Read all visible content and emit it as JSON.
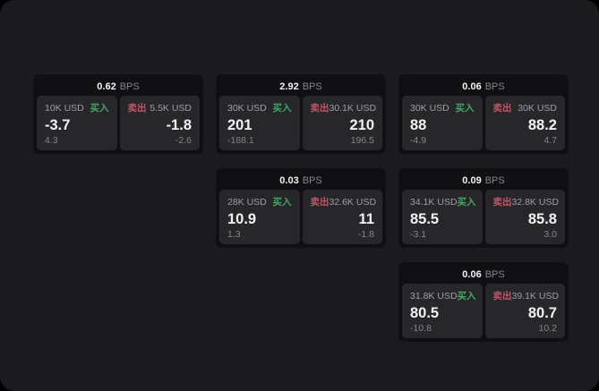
{
  "labels": {
    "bps": "BPS",
    "buy": "买入",
    "sell": "卖出"
  },
  "colors": {
    "background": "#1b1b1d",
    "card": "#101012",
    "panel": "#27272a",
    "buy": "#42a567",
    "sell": "#c05567",
    "text_primary": "#f2f2f2",
    "text_secondary": "#9e9ea3",
    "text_muted": "#85858a"
  },
  "cards": [
    {
      "row": 1,
      "col": 1,
      "bps": "0.62",
      "buy": {
        "amount": "10K USD",
        "price": "-3.7",
        "delta": "4.3"
      },
      "sell": {
        "amount": "5.5K USD",
        "price": "-1.8",
        "delta": "-2.6"
      }
    },
    {
      "row": 1,
      "col": 2,
      "bps": "2.92",
      "buy": {
        "amount": "30K USD",
        "price": "201",
        "delta": "-188.1"
      },
      "sell": {
        "amount": "30.1K USD",
        "price": "210",
        "delta": "196.5"
      }
    },
    {
      "row": 1,
      "col": 3,
      "bps": "0.06",
      "buy": {
        "amount": "30K USD",
        "price": "88",
        "delta": "-4.9"
      },
      "sell": {
        "amount": "30K USD",
        "price": "88.2",
        "delta": "4.7"
      }
    },
    {
      "row": 2,
      "col": 2,
      "bps": "0.03",
      "buy": {
        "amount": "28K USD",
        "price": "10.9",
        "delta": "1.3"
      },
      "sell": {
        "amount": "32.6K USD",
        "price": "11",
        "delta": "-1.8"
      }
    },
    {
      "row": 2,
      "col": 3,
      "bps": "0.09",
      "buy": {
        "amount": "34.1K USD",
        "price": "85.5",
        "delta": "-3.1"
      },
      "sell": {
        "amount": "32.8K USD",
        "price": "85.8",
        "delta": "3.0"
      }
    },
    {
      "row": 3,
      "col": 3,
      "bps": "0.06",
      "buy": {
        "amount": "31.8K USD",
        "price": "80.5",
        "delta": "-10.8"
      },
      "sell": {
        "amount": "39.1K USD",
        "price": "80.7",
        "delta": "10.2"
      }
    }
  ]
}
